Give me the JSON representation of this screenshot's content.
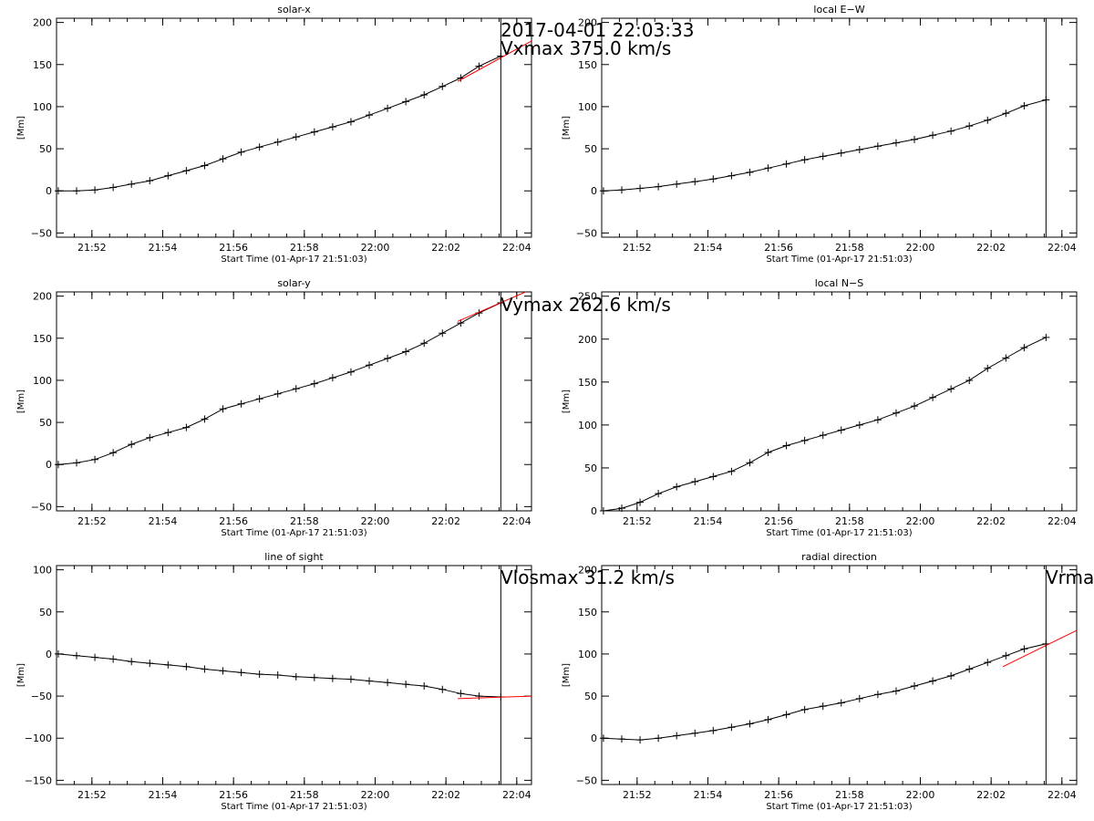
{
  "figure": {
    "header_time": "2017-04-01 22:03:33",
    "marker_time": "22:03:33",
    "start_time": "21:51:03",
    "xlim": [
      "21:51:00",
      "22:04:25"
    ],
    "axis_color": "#000000",
    "fit_color": "#ff0000"
  },
  "chart_data": [
    {
      "type": "line",
      "title": "solar-x",
      "xlabel": "Start Time (01-Apr-17 21:51:03)",
      "ylabel": "[Mm]",
      "xticks": [
        "21:52",
        "21:54",
        "21:56",
        "21:58",
        "22:00",
        "22:02",
        "22:04"
      ],
      "yticks": [
        -50,
        0,
        50,
        100,
        150,
        200
      ],
      "ylim": [
        -55,
        205
      ],
      "annotation": "Vxmax  375.0 km/s",
      "x": [
        "21:51:03",
        "21:51:34",
        "21:52:05",
        "21:52:36",
        "21:53:07",
        "21:53:38",
        "21:54:09",
        "21:54:40",
        "21:55:11",
        "21:55:42",
        "21:56:13",
        "21:56:44",
        "21:57:15",
        "21:57:46",
        "21:58:17",
        "21:58:48",
        "21:59:19",
        "21:59:50",
        "22:00:21",
        "22:00:52",
        "22:01:23",
        "22:01:54",
        "22:02:25",
        "22:02:56",
        "22:03:33"
      ],
      "y": [
        0,
        0,
        1,
        4,
        8,
        12,
        18,
        24,
        30,
        38,
        46,
        52,
        58,
        64,
        70,
        76,
        82,
        90,
        98,
        106,
        114,
        124,
        134,
        148,
        160
      ],
      "fit": {
        "x": [
          "22:02:20",
          "22:04:25"
        ],
        "y": [
          130,
          178
        ]
      }
    },
    {
      "type": "line",
      "title": "local E−W",
      "xlabel": "Start Time (01-Apr-17 21:51:03)",
      "ylabel": "[Mm]",
      "xticks": [
        "21:52",
        "21:54",
        "21:56",
        "21:58",
        "22:00",
        "22:02",
        "22:04"
      ],
      "yticks": [
        -50,
        0,
        50,
        100,
        150,
        200
      ],
      "ylim": [
        -55,
        205
      ],
      "annotation": "",
      "x": [
        "21:51:03",
        "21:51:34",
        "21:52:05",
        "21:52:36",
        "21:53:07",
        "21:53:38",
        "21:54:09",
        "21:54:40",
        "21:55:11",
        "21:55:42",
        "21:56:13",
        "21:56:44",
        "21:57:15",
        "21:57:46",
        "21:58:17",
        "21:58:48",
        "21:59:19",
        "21:59:50",
        "22:00:21",
        "22:00:52",
        "22:01:23",
        "22:01:54",
        "22:02:25",
        "22:02:56",
        "22:03:33"
      ],
      "y": [
        0,
        1,
        3,
        5,
        8,
        11,
        14,
        18,
        22,
        27,
        32,
        37,
        41,
        45,
        49,
        53,
        57,
        61,
        66,
        71,
        77,
        84,
        92,
        101,
        108
      ],
      "fit": null
    },
    {
      "type": "line",
      "title": "solar-y",
      "xlabel": "Start Time (01-Apr-17 21:51:03)",
      "ylabel": "[Mm]",
      "xticks": [
        "21:52",
        "21:54",
        "21:56",
        "21:58",
        "22:00",
        "22:02",
        "22:04"
      ],
      "yticks": [
        -50,
        0,
        50,
        100,
        150,
        200
      ],
      "ylim": [
        -55,
        205
      ],
      "annotation": "Vymax  262.6 km/s",
      "x": [
        "21:51:03",
        "21:51:34",
        "21:52:05",
        "21:52:36",
        "21:53:07",
        "21:53:38",
        "21:54:09",
        "21:54:40",
        "21:55:11",
        "21:55:42",
        "21:56:13",
        "21:56:44",
        "21:57:15",
        "21:57:46",
        "21:58:17",
        "21:58:48",
        "21:59:19",
        "21:59:50",
        "22:00:21",
        "22:00:52",
        "22:01:23",
        "22:01:54",
        "22:02:25",
        "22:02:56",
        "22:03:33"
      ],
      "y": [
        0,
        2,
        6,
        14,
        24,
        32,
        38,
        44,
        54,
        66,
        72,
        78,
        84,
        90,
        96,
        103,
        110,
        118,
        126,
        134,
        144,
        156,
        168,
        180,
        192
      ],
      "fit": {
        "x": [
          "22:02:20",
          "22:04:15"
        ],
        "y": [
          170,
          205
        ]
      }
    },
    {
      "type": "line",
      "title": "local N−S",
      "xlabel": "Start Time (01-Apr-17 21:51:03)",
      "ylabel": "[Mm]",
      "xticks": [
        "21:52",
        "21:54",
        "21:56",
        "21:58",
        "22:00",
        "22:02",
        "22:04"
      ],
      "yticks": [
        0,
        50,
        100,
        150,
        200,
        250
      ],
      "ylim": [
        0,
        255
      ],
      "annotation": "",
      "x": [
        "21:51:03",
        "21:51:34",
        "21:52:05",
        "21:52:36",
        "21:53:07",
        "21:53:38",
        "21:54:09",
        "21:54:40",
        "21:55:11",
        "21:55:42",
        "21:56:13",
        "21:56:44",
        "21:57:15",
        "21:57:46",
        "21:58:17",
        "21:58:48",
        "21:59:19",
        "21:59:50",
        "22:00:21",
        "22:00:52",
        "22:01:23",
        "22:01:54",
        "22:02:25",
        "22:02:56",
        "22:03:33"
      ],
      "y": [
        0,
        3,
        10,
        20,
        28,
        34,
        40,
        46,
        56,
        68,
        76,
        82,
        88,
        94,
        100,
        106,
        114,
        122,
        132,
        142,
        152,
        166,
        178,
        190,
        202
      ],
      "fit": null
    },
    {
      "type": "line",
      "title": "line of sight",
      "xlabel": "Start Time (01-Apr-17 21:51:03)",
      "ylabel": "[Mm]",
      "xticks": [
        "21:52",
        "21:54",
        "21:56",
        "21:58",
        "22:00",
        "22:02",
        "22:04"
      ],
      "yticks": [
        -150,
        -100,
        -50,
        0,
        50,
        100
      ],
      "ylim": [
        -155,
        105
      ],
      "annotation": "Vlosmax   31.2 km/s",
      "x": [
        "21:51:03",
        "21:51:34",
        "21:52:05",
        "21:52:36",
        "21:53:07",
        "21:53:38",
        "21:54:09",
        "21:54:40",
        "21:55:11",
        "21:55:42",
        "21:56:13",
        "21:56:44",
        "21:57:15",
        "21:57:46",
        "21:58:17",
        "21:58:48",
        "21:59:19",
        "21:59:50",
        "22:00:21",
        "22:00:52",
        "22:01:23",
        "22:01:54",
        "22:02:25",
        "22:02:56",
        "22:03:33"
      ],
      "y": [
        0,
        -2,
        -4,
        -6,
        -9,
        -11,
        -13,
        -15,
        -18,
        -20,
        -22,
        -24,
        -25,
        -27,
        -28,
        -29,
        -30,
        -32,
        -34,
        -36,
        -38,
        -42,
        -47,
        -50,
        -51
      ],
      "fit": {
        "x": [
          "22:02:20",
          "22:04:25"
        ],
        "y": [
          -53,
          -50
        ]
      }
    },
    {
      "type": "line",
      "title": "radial direction",
      "xlabel": "Start Time (01-Apr-17 21:51:03)",
      "ylabel": "[Mm]",
      "xticks": [
        "21:52",
        "21:54",
        "21:56",
        "21:58",
        "22:00",
        "22:02",
        "22:04"
      ],
      "yticks": [
        -50,
        0,
        50,
        100,
        150,
        200
      ],
      "ylim": [
        -55,
        205
      ],
      "annotation": "Vrma",
      "x": [
        "21:51:03",
        "21:51:34",
        "21:52:05",
        "21:52:36",
        "21:53:07",
        "21:53:38",
        "21:54:09",
        "21:54:40",
        "21:55:11",
        "21:55:42",
        "21:56:13",
        "21:56:44",
        "21:57:15",
        "21:57:46",
        "21:58:17",
        "21:58:48",
        "21:59:19",
        "21:59:50",
        "22:00:21",
        "22:00:52",
        "22:01:23",
        "22:01:54",
        "22:02:25",
        "22:02:56",
        "22:03:33"
      ],
      "y": [
        0,
        -1,
        -2,
        0,
        3,
        6,
        9,
        13,
        17,
        22,
        28,
        34,
        38,
        42,
        47,
        52,
        56,
        62,
        68,
        74,
        82,
        90,
        98,
        106,
        112
      ],
      "fit": {
        "x": [
          "22:02:20",
          "22:04:25"
        ],
        "y": [
          85,
          128
        ]
      }
    }
  ]
}
